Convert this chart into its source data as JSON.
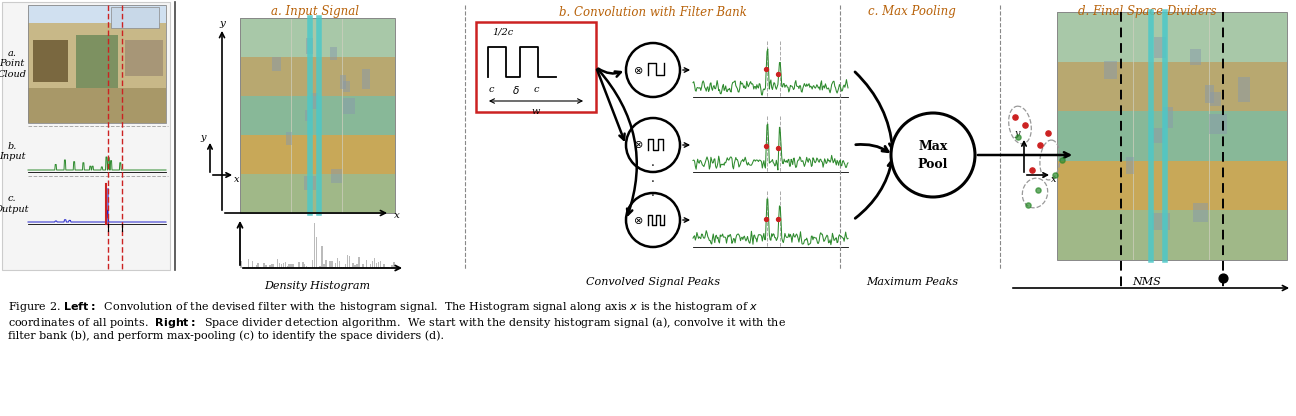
{
  "bg_color": "#ffffff",
  "text_color": "#000000",
  "cyan_color": "#4dc8c8",
  "green_color": "#2d8a2d",
  "red_color": "#cc2222",
  "blue_color": "#2222cc",
  "filter_box_color": "#cc2222",
  "dashed_color": "#888888",
  "scatter_red": "#cc2222",
  "scatter_green": "#2d8a2d",
  "orange_title": "#b8620a",
  "section_titles": [
    "a. Input Signal",
    "b. Convolution with Filter Bank",
    "c. Max Pooling",
    "d. Final Space Dividers"
  ],
  "bottom_labels": [
    "Density Histogram",
    "Convolved Signal Peaks",
    "Maximum Peaks",
    "NMS"
  ],
  "left_panel_labels": [
    "a.\nPoint\nCloud",
    "b.\nInput",
    "c.\nOutput"
  ],
  "cap1": "Figure 2. ",
  "cap1b": "Left:",
  "cap1c": " Convolution of the devised filter with the histogram signal.  The Histogram signal along axis ",
  "cap1x": "x",
  "cap1d": " is the histogram of ",
  "cap1x2": "x",
  "cap2": "coordinates of all points. ",
  "cap2b": "Right:",
  "cap2c": " Space divider detection algorithm.  We start with the density histogram signal (a), convolve it with the",
  "cap3": "filter bank (b), and perform max-pooling (c) to identify the space dividers (d)."
}
